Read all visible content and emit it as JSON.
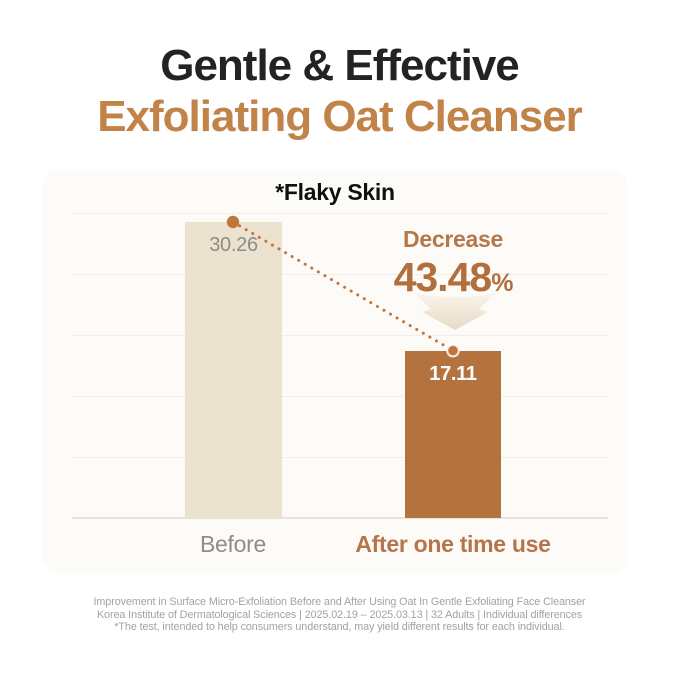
{
  "header": {
    "title_line1": "Gentle & Effective",
    "title_line2": "Exfoliating Oat Cleanser"
  },
  "chart": {
    "title": "*Flaky Skin",
    "decrease": {
      "label": "Decrease",
      "value": "43.48",
      "unit": "%"
    }
  },
  "footer": {
    "line1": "Improvement in Surface Micro-Exfoliation Before and After Using Oat In Gentle Exfoliating Face Cleanser",
    "line2": "Korea Institute of Dermatological Sciences | 2025.02.19 – 2025.03.13 | 32 Adults | Individual differences",
    "line3": "*The test, intended to help consumers understand, may yield different results for each individual."
  },
  "colors": {
    "heading_dark": "#232323",
    "heading_tan": "#c28349",
    "bar_before": "#ece2d0",
    "bar_after": "#b3723e",
    "dotted_line": "#c0773d",
    "decrease_text": "#b26f3e",
    "label_gray": "#8f8d8b",
    "footer_gray": "#a3a2a0"
  },
  "chart_data": {
    "type": "bar",
    "title": "*Flaky Skin",
    "categories": [
      "Before",
      "After one time use"
    ],
    "values": [
      30.26,
      17.11
    ],
    "bar_colors": [
      "#ece2d0",
      "#b3723e"
    ],
    "value_label_colors": [
      "#8e8c88",
      "#ffffff"
    ],
    "annotations": [
      {
        "text": "Decrease 43.48%",
        "position": "above After bar"
      },
      {
        "text": "dotted connector from top of Before bar to top of After bar"
      }
    ],
    "ylim": [
      0,
      31.5
    ],
    "grid": true,
    "gridline_count": 6,
    "legend": "none",
    "xlabel": "",
    "ylabel": ""
  }
}
